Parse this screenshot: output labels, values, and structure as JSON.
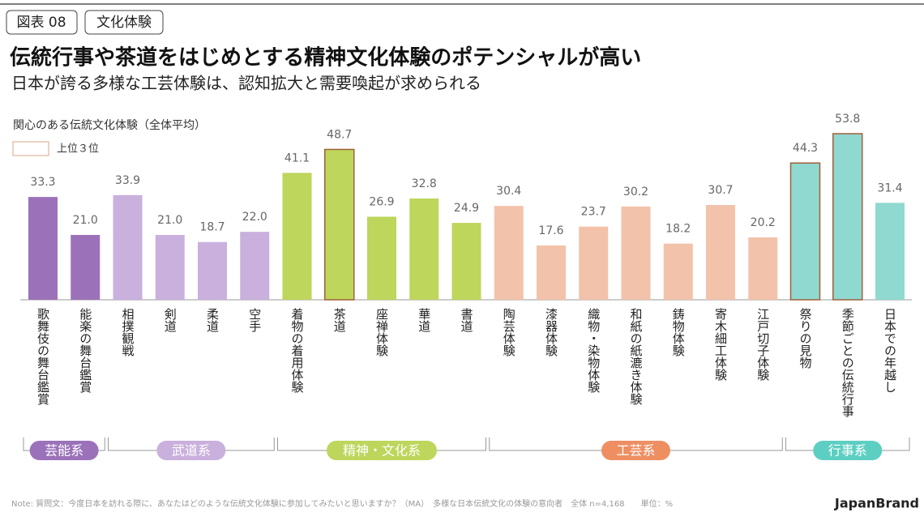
{
  "badges": [
    "図表 08",
    "文化体験"
  ],
  "chart_data": {
    "type": "bar",
    "title": "伝統行事や茶道をはじめとする精神文化体験のポテンシャルが高い",
    "subtitle": "日本が誇る多様な工芸体験は、認知拡大と需要喚起が求められる",
    "y_label": "関心のある伝統文化体験（全体平均）",
    "legend_label": "上位３位",
    "highlight_color": "#a0603a",
    "categories": [
      "歌舞伎の舞台鑑賞",
      "能楽の舞台鑑賞",
      "相撲観戦",
      "剣道",
      "柔道",
      "空手",
      "着物の着用体験",
      "茶道",
      "座禅体験",
      "華道",
      "書道",
      "陶芸体験",
      "漆器体験",
      "織物・染物体験",
      "和紙の紙漉き体験",
      "鋳物体験",
      "寄木細工体験",
      "江戸切子体験",
      "祭りの見物",
      "季節ごとの伝統行事",
      "日本での年越し"
    ],
    "values": [
      33.3,
      21.0,
      33.9,
      21.0,
      18.7,
      22.0,
      41.1,
      48.7,
      26.9,
      32.8,
      24.9,
      30.4,
      17.6,
      23.7,
      30.2,
      18.2,
      30.7,
      20.2,
      44.3,
      53.8,
      31.4
    ],
    "value_labels": [
      "33.3",
      "21.0",
      "33.9",
      "21.0",
      "18.7",
      "22.0",
      "41.1",
      "48.7",
      "26.9",
      "32.8",
      "24.9",
      "30.4",
      "17.6",
      "23.7",
      "30.2",
      "18.2",
      "30.7",
      "20.2",
      "44.3",
      "53.8",
      "31.4"
    ],
    "colors": [
      "#9b72b9",
      "#9b72b9",
      "#c9b0dd",
      "#c9b0dd",
      "#c9b0dd",
      "#c9b0dd",
      "#bdd65b",
      "#bdd65b",
      "#bdd65b",
      "#bdd65b",
      "#bdd65b",
      "#f3c2aa",
      "#f3c2aa",
      "#f3c2aa",
      "#f3c2aa",
      "#f3c2aa",
      "#f3c2aa",
      "#f3c2aa",
      "#8fd9d0",
      "#8fd9d0",
      "#8fd9d0"
    ],
    "highlight": [
      false,
      false,
      false,
      false,
      false,
      false,
      false,
      true,
      false,
      false,
      false,
      false,
      false,
      false,
      false,
      false,
      false,
      false,
      true,
      true,
      false
    ],
    "groups": [
      {
        "name": "芸能系",
        "count": 2,
        "color": "#9b72b9"
      },
      {
        "name": "武道系",
        "count": 4,
        "color": "#c9b0dd"
      },
      {
        "name": "精神・文化系",
        "count": 5,
        "color": "#bdd65b"
      },
      {
        "name": "工芸系",
        "count": 7,
        "color": "#ee8f62"
      },
      {
        "name": "行事系",
        "count": 3,
        "color": "#5dcfc2"
      }
    ]
  },
  "note": "Note: 質問文：今度日本を訪れる際に、あなたはどのような伝統文化体験に参加してみたいと思いますか？（MA）　多様な日本伝統文化の体験の意向者　全体 n=4,168　　単位：%",
  "brand": "JapanBrand"
}
